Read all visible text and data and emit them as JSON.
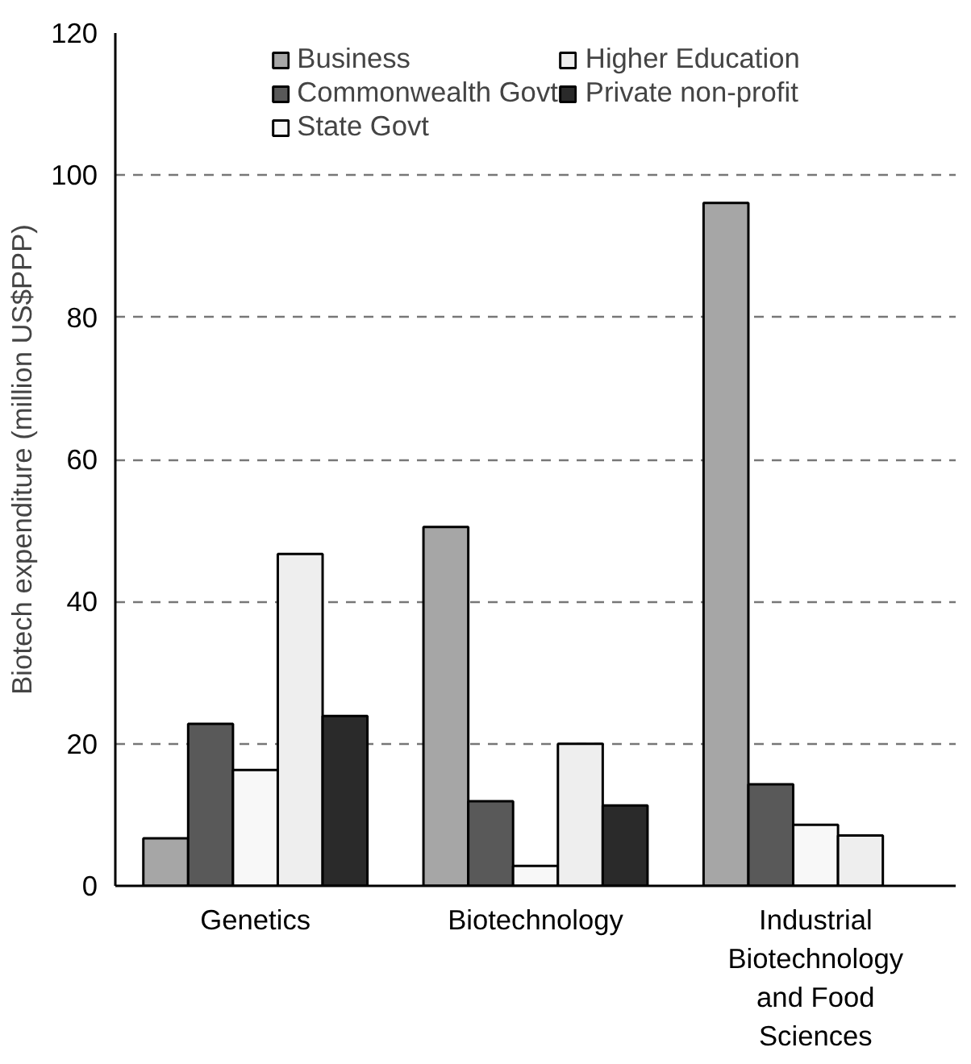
{
  "chart_data": {
    "type": "bar",
    "ylabel": "Biotech expenditure (million US$PPP)",
    "categories": [
      "Genetics",
      "Biotechnology",
      "Industrial Biotechnology and Food Sciences"
    ],
    "series": [
      {
        "name": "Business",
        "color": "#a6a6a6",
        "values": [
          6.7,
          50.5,
          96.1
        ]
      },
      {
        "name": "Commonwealth Govt",
        "color": "#595959",
        "values": [
          22.8,
          11.9,
          14.3
        ]
      },
      {
        "name": "State Govt",
        "color": "#f8f8f8",
        "values": [
          16.3,
          2.8,
          8.6
        ]
      },
      {
        "name": "Higher Education",
        "color": "#eeeeee",
        "values": [
          46.7,
          20.0,
          7.1
        ]
      },
      {
        "name": "Private non-profit",
        "color": "#2a2a2a",
        "values": [
          23.9,
          11.3,
          null
        ]
      }
    ],
    "ylim": [
      0,
      120
    ],
    "yticks": [
      0,
      20,
      40,
      60,
      80,
      100,
      120
    ],
    "grid": "y",
    "legend": "top"
  }
}
